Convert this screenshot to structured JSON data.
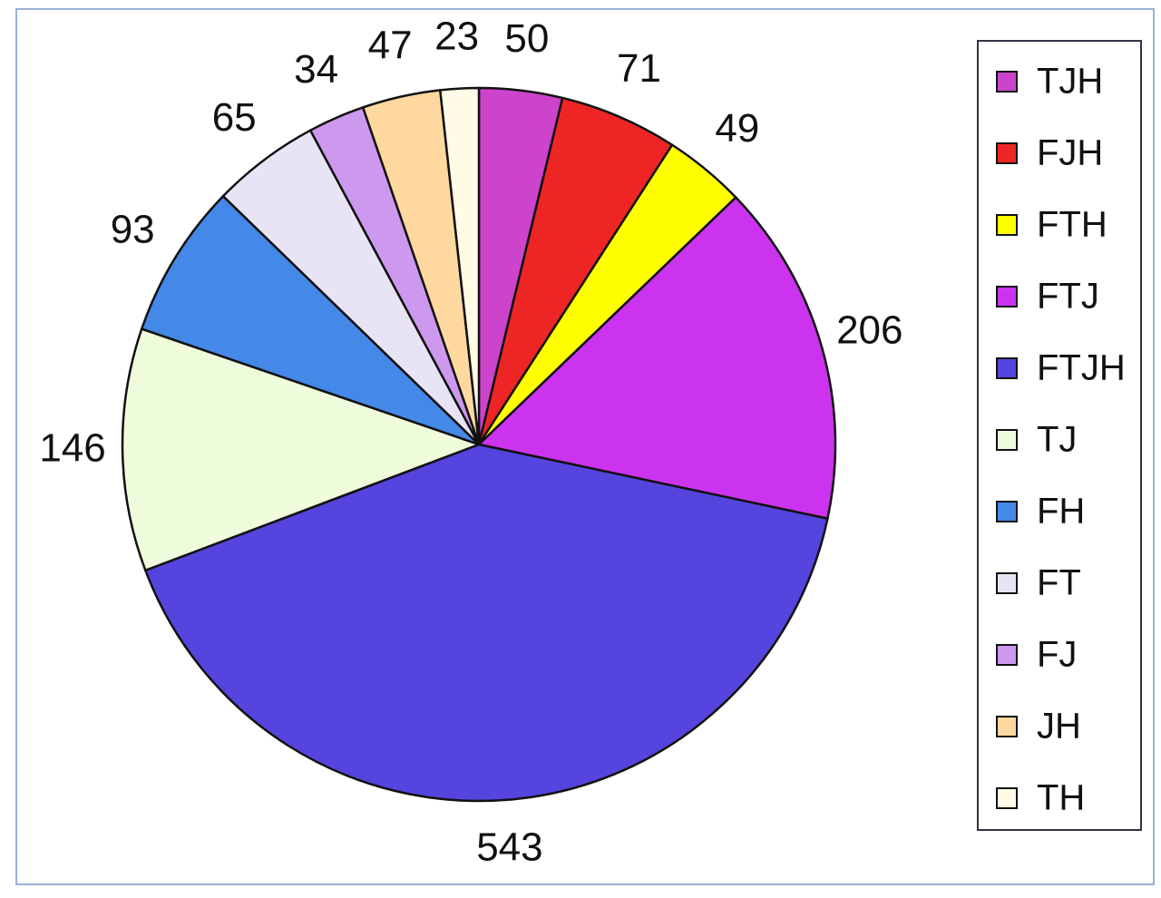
{
  "chart_data": {
    "type": "pie",
    "categories": [
      "TJH",
      "FJH",
      "FTH",
      "FTJ",
      "FTJH",
      "TJ",
      "FH",
      "FT",
      "FJ",
      "JH",
      "TH"
    ],
    "values": [
      50,
      71,
      49,
      206,
      543,
      146,
      93,
      65,
      34,
      47,
      23
    ],
    "colors": [
      "#cc44cc",
      "#ee2525",
      "#ffff00",
      "#cc33ee",
      "#5544dd",
      "#eefcdc",
      "#4488e8",
      "#e8e4f6",
      "#cc99ee",
      "#ffd8a0",
      "#fffbe6"
    ],
    "legend": "right"
  }
}
